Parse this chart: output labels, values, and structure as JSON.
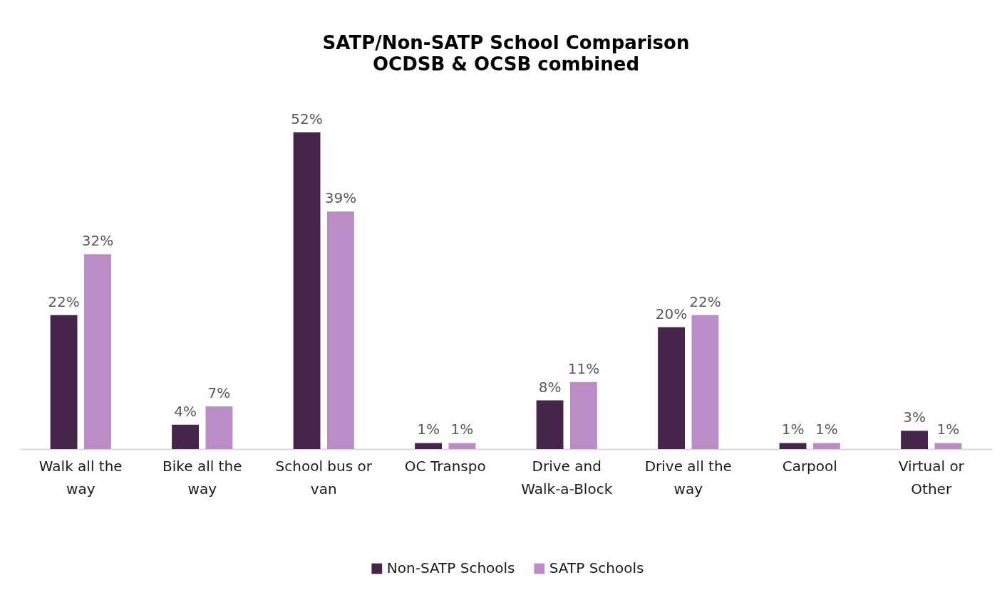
{
  "chart_data": {
    "type": "bar",
    "title": "SATP/Non-SATP School Comparison",
    "subtitle": "OCDSB & OCSB combined",
    "categories": [
      "Walk all the way",
      "Bike all the way",
      "School bus or van",
      "OC Transpo",
      "Drive and Walk-a-Block",
      "Drive all the way",
      "Carpool",
      "Virtual or Other"
    ],
    "series": [
      {
        "name": "Non-SATP Schools",
        "color": "#45264a",
        "values": [
          22,
          4,
          52,
          1,
          8,
          20,
          1,
          3
        ],
        "value_labels": [
          "22%",
          "4%",
          "52%",
          "1%",
          "8%",
          "20%",
          "1%",
          "3%"
        ]
      },
      {
        "name": "SATP Schools",
        "color": "#bb8dc6",
        "values": [
          32,
          7,
          39,
          1,
          11,
          22,
          1,
          1
        ],
        "value_labels": [
          "32%",
          "7%",
          "39%",
          "1%",
          "11%",
          "22%",
          "1%",
          "1%"
        ]
      }
    ],
    "tick_labels": "x",
    "legend": "bottom"
  }
}
